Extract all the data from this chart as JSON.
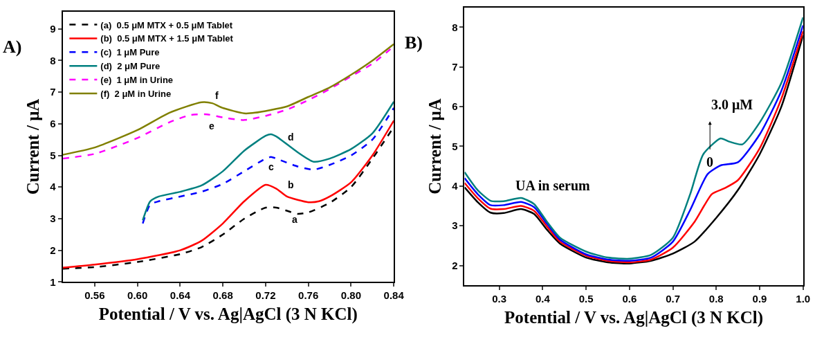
{
  "chart_data": [
    {
      "type": "line",
      "title": "A)",
      "xlabel": "Potential / V vs. Ag|AgCl (3 N KCl)",
      "ylabel": "Current / μA",
      "xlim": [
        0.53,
        0.84
      ],
      "ylim": [
        1,
        9.55
      ],
      "xticks": [
        {
          "value": 0.56,
          "label": "0.56"
        },
        {
          "value": 0.6,
          "label": "0.60"
        },
        {
          "value": 0.64,
          "label": "0.64"
        },
        {
          "value": 0.68,
          "label": "0.68"
        },
        {
          "value": 0.72,
          "label": "0.72"
        },
        {
          "value": 0.76,
          "label": "0.76"
        },
        {
          "value": 0.8,
          "label": "0.80"
        },
        {
          "value": 0.84,
          "label": "0.84"
        }
      ],
      "yticks": [
        1,
        2,
        3,
        4,
        5,
        6,
        7,
        8,
        9
      ],
      "legend": "top left",
      "marker": "none",
      "series": [
        {
          "name": "(a)  0.5 μM MTX + 0.5 μM Tablet",
          "color": "#000000",
          "line_style": "dashed",
          "x": [
            0.53,
            0.56,
            0.6,
            0.64,
            0.66,
            0.68,
            0.7,
            0.72,
            0.73,
            0.74,
            0.75,
            0.76,
            0.78,
            0.8,
            0.82,
            0.84
          ],
          "values": [
            1.42,
            1.47,
            1.63,
            1.88,
            2.1,
            2.5,
            3.0,
            3.35,
            3.35,
            3.25,
            3.15,
            3.2,
            3.5,
            4.0,
            4.9,
            5.9
          ]
        },
        {
          "name": "(b)  0.5 μM MTX + 1.5 μM Tablet",
          "color": "#ff0000",
          "line_style": "solid",
          "x": [
            0.53,
            0.56,
            0.6,
            0.64,
            0.66,
            0.68,
            0.7,
            0.72,
            0.73,
            0.74,
            0.76,
            0.77,
            0.78,
            0.8,
            0.82,
            0.84
          ],
          "values": [
            1.45,
            1.55,
            1.72,
            2.0,
            2.3,
            2.85,
            3.55,
            4.07,
            3.95,
            3.7,
            3.52,
            3.55,
            3.7,
            4.15,
            5.0,
            6.1
          ]
        },
        {
          "name": "(c)  1 μM Pure",
          "color": "#0000ff",
          "line_style": "dashed",
          "x": [
            0.605,
            0.612,
            0.62,
            0.64,
            0.66,
            0.68,
            0.7,
            0.72,
            0.725,
            0.73,
            0.75,
            0.765,
            0.78,
            0.8,
            0.82,
            0.84
          ],
          "values": [
            2.85,
            3.45,
            3.55,
            3.7,
            3.85,
            4.1,
            4.5,
            4.9,
            4.95,
            4.9,
            4.65,
            4.55,
            4.7,
            5.0,
            5.5,
            6.5
          ]
        },
        {
          "name": "(d)  2 μM Pure",
          "color": "#008080",
          "line_style": "solid",
          "x": [
            0.605,
            0.612,
            0.62,
            0.64,
            0.66,
            0.68,
            0.7,
            0.72,
            0.725,
            0.73,
            0.75,
            0.765,
            0.78,
            0.8,
            0.82,
            0.84
          ],
          "values": [
            2.95,
            3.55,
            3.7,
            3.85,
            4.05,
            4.5,
            5.15,
            5.62,
            5.67,
            5.6,
            5.1,
            4.8,
            4.9,
            5.2,
            5.7,
            6.7
          ]
        },
        {
          "name": "(e)  1 μM in Urine",
          "color": "#ff00ff",
          "line_style": "dashed",
          "x": [
            0.53,
            0.56,
            0.6,
            0.63,
            0.65,
            0.665,
            0.68,
            0.7,
            0.72,
            0.74,
            0.76,
            0.78,
            0.8,
            0.82,
            0.84
          ],
          "values": [
            4.9,
            5.05,
            5.55,
            6.05,
            6.28,
            6.3,
            6.2,
            6.12,
            6.25,
            6.45,
            6.75,
            7.1,
            7.5,
            7.9,
            8.45
          ]
        },
        {
          "name": "(f)  2 μM in Urine",
          "color": "#808000",
          "line_style": "solid",
          "x": [
            0.53,
            0.56,
            0.6,
            0.63,
            0.66,
            0.67,
            0.68,
            0.7,
            0.71,
            0.74,
            0.76,
            0.78,
            0.8,
            0.82,
            0.84
          ],
          "values": [
            5.02,
            5.25,
            5.8,
            6.35,
            6.68,
            6.65,
            6.5,
            6.33,
            6.35,
            6.55,
            6.85,
            7.15,
            7.55,
            8.0,
            8.52
          ]
        }
      ],
      "annotations": [
        "a",
        "b",
        "c",
        "d",
        "e",
        "f"
      ]
    },
    {
      "type": "line",
      "title": "B)",
      "xlabel": "Potential / V vs. Ag|AgCl (3 N KCl)",
      "ylabel": "Current / μA",
      "xlim": [
        0.22,
        1.0
      ],
      "ylim": [
        1.5,
        8.5
      ],
      "xticks": [
        0.3,
        0.4,
        0.5,
        0.6,
        0.7,
        0.8,
        0.9,
        {
          "value": 1.0,
          "label": "1.0"
        }
      ],
      "yticks": [
        2,
        3,
        4,
        5,
        6,
        7,
        8
      ],
      "legend": false,
      "marker": "none",
      "line_style": "solid",
      "series": [
        {
          "color": "#000000",
          "x": [
            0.22,
            0.25,
            0.28,
            0.31,
            0.35,
            0.38,
            0.41,
            0.44,
            0.5,
            0.55,
            0.6,
            0.65,
            0.7,
            0.75,
            0.8,
            0.85,
            0.9,
            0.95,
            1.0
          ],
          "values": [
            3.97,
            3.6,
            3.33,
            3.32,
            3.42,
            3.3,
            2.9,
            2.55,
            2.2,
            2.08,
            2.05,
            2.12,
            2.3,
            2.6,
            3.2,
            3.9,
            4.8,
            6.0,
            7.8
          ]
        },
        {
          "color": "#ff0000",
          "x": [
            0.22,
            0.25,
            0.28,
            0.31,
            0.35,
            0.38,
            0.41,
            0.44,
            0.5,
            0.55,
            0.6,
            0.65,
            0.7,
            0.75,
            0.79,
            0.82,
            0.85,
            0.9,
            0.95,
            1.0
          ],
          "values": [
            4.08,
            3.7,
            3.43,
            3.42,
            3.5,
            3.38,
            2.98,
            2.6,
            2.25,
            2.12,
            2.08,
            2.15,
            2.45,
            3.1,
            3.8,
            3.95,
            4.15,
            4.95,
            6.2,
            7.9
          ]
        },
        {
          "color": "#0000ff",
          "x": [
            0.22,
            0.25,
            0.28,
            0.31,
            0.35,
            0.38,
            0.41,
            0.44,
            0.5,
            0.55,
            0.6,
            0.65,
            0.7,
            0.74,
            0.78,
            0.81,
            0.85,
            0.9,
            0.95,
            1.0
          ],
          "values": [
            4.2,
            3.8,
            3.52,
            3.52,
            3.6,
            3.47,
            3.05,
            2.65,
            2.28,
            2.15,
            2.12,
            2.2,
            2.6,
            3.4,
            4.3,
            4.52,
            4.6,
            5.3,
            6.4,
            8.05
          ]
        },
        {
          "color": "#00807f",
          "x": [
            0.22,
            0.25,
            0.28,
            0.31,
            0.35,
            0.38,
            0.41,
            0.44,
            0.5,
            0.55,
            0.6,
            0.65,
            0.7,
            0.74,
            0.77,
            0.81,
            0.83,
            0.86,
            0.9,
            0.95,
            1.0
          ],
          "values": [
            4.35,
            3.9,
            3.63,
            3.62,
            3.7,
            3.55,
            3.1,
            2.7,
            2.35,
            2.2,
            2.17,
            2.27,
            2.7,
            3.8,
            4.8,
            5.2,
            5.12,
            5.05,
            5.6,
            6.6,
            8.25
          ]
        }
      ],
      "annotations": [
        "UA in serum",
        "3.0 μM",
        "0"
      ]
    }
  ]
}
